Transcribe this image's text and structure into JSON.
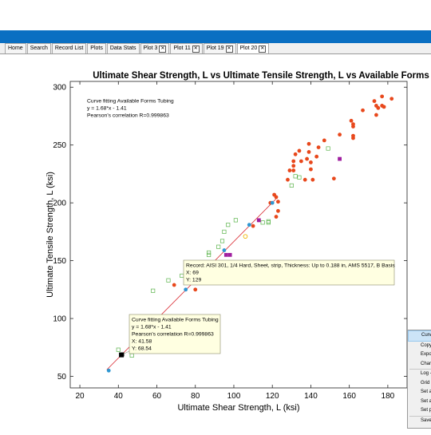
{
  "tabs": [
    {
      "label": "Home",
      "closable": false,
      "active": false
    },
    {
      "label": "Search",
      "closable": false,
      "active": false
    },
    {
      "label": "Record List",
      "closable": false,
      "active": false
    },
    {
      "label": "Plots",
      "closable": false,
      "active": false
    },
    {
      "label": "Data Stats",
      "closable": false,
      "active": false
    },
    {
      "label": "Plot 3",
      "closable": true,
      "active": false
    },
    {
      "label": "Plot 11",
      "closable": true,
      "active": false
    },
    {
      "label": "Plot 19",
      "closable": true,
      "active": false
    },
    {
      "label": "Plot 20",
      "closable": true,
      "active": true
    }
  ],
  "chart_data": {
    "type": "scatter",
    "title": "Ultimate Shear Strength, L vs Ultimate Tensile Strength, L vs Available Forms",
    "xlabel": "Ultimate Shear Strength, L (ksi)",
    "ylabel": "Ultimate Tensile Strength, L (ksi)",
    "xlim": [
      15,
      190
    ],
    "ylim": [
      40,
      305
    ],
    "xticks": [
      20,
      40,
      60,
      80,
      100,
      120,
      140,
      160,
      180
    ],
    "yticks": [
      50,
      100,
      150,
      200,
      250,
      300
    ],
    "grid": false,
    "fit": {
      "slope": 1.68,
      "intercept": -1.41,
      "x_range": [
        34,
        122
      ]
    },
    "series": [
      {
        "marker": "circle",
        "color": "#e8481c",
        "points": [
          [
            69,
            129
          ],
          [
            80,
            125
          ],
          [
            110,
            180
          ],
          [
            113,
            185
          ],
          [
            119,
            200
          ],
          [
            121,
            207
          ],
          [
            122,
            205
          ],
          [
            123,
            201
          ],
          [
            123,
            193
          ],
          [
            122,
            188
          ],
          [
            128,
            220
          ],
          [
            129,
            228
          ],
          [
            131,
            228
          ],
          [
            131,
            236
          ],
          [
            131,
            232
          ],
          [
            132,
            242
          ],
          [
            134,
            245
          ],
          [
            135,
            236
          ],
          [
            137,
            220
          ],
          [
            138,
            238
          ],
          [
            139,
            244
          ],
          [
            139,
            251
          ],
          [
            140,
            229
          ],
          [
            140,
            235
          ],
          [
            141,
            220
          ],
          [
            143,
            240
          ],
          [
            144,
            248
          ],
          [
            147,
            254
          ],
          [
            152,
            221
          ],
          [
            155,
            259
          ],
          [
            161,
            271
          ],
          [
            162,
            268
          ],
          [
            162,
            266
          ],
          [
            162,
            256
          ],
          [
            162,
            258
          ],
          [
            167,
            280
          ],
          [
            173,
            288
          ],
          [
            174,
            284
          ],
          [
            174,
            276
          ],
          [
            175,
            282
          ],
          [
            177,
            284
          ],
          [
            177,
            292
          ],
          [
            178,
            283
          ],
          [
            182,
            290
          ]
        ]
      },
      {
        "marker": "square-open",
        "color": "#5ab34a",
        "points": [
          [
            40,
            73
          ],
          [
            47,
            68
          ],
          [
            58,
            124
          ],
          [
            66,
            133
          ],
          [
            73,
            137
          ],
          [
            87,
            155
          ],
          [
            87,
            157
          ],
          [
            92,
            162
          ],
          [
            94,
            167
          ],
          [
            95,
            175
          ],
          [
            97,
            181
          ],
          [
            101,
            185
          ],
          [
            118,
            184
          ],
          [
            115,
            183
          ],
          [
            118,
            183
          ],
          [
            130,
            215
          ],
          [
            132,
            223
          ],
          [
            134,
            222
          ],
          [
            149,
            247
          ]
        ]
      },
      {
        "marker": "circle",
        "color": "#2e97d2",
        "points": [
          [
            35,
            55
          ],
          [
            75,
            125
          ],
          [
            95,
            159
          ],
          [
            108,
            181
          ],
          [
            120,
            200
          ]
        ]
      },
      {
        "marker": "circle-open",
        "color": "#f0b400",
        "points": [
          [
            106,
            171
          ]
        ]
      },
      {
        "marker": "square",
        "color": "#a01fa0",
        "points": [
          [
            96,
            155
          ],
          [
            98,
            155
          ],
          [
            113,
            185
          ],
          [
            155,
            238
          ]
        ]
      },
      {
        "marker": "square",
        "color": "#000000",
        "points": [
          [
            42,
            69
          ]
        ]
      }
    ],
    "annotations": {
      "fit_box": {
        "lines": [
          "Curve fitting Available Forms Tubing",
          "y = 1.68*x - 1.41",
          "Pearson's correlation R=0.999863"
        ]
      },
      "point_tooltip_1": {
        "lines": [
          "Curve fitting Available Forms Tubing",
          "y = 1.68*x - 1.41",
          "Pearson's correlation R=0.999863",
          "X: 41.58",
          "Y: 68.54"
        ],
        "x": 41.58,
        "y": 68.54
      },
      "point_tooltip_2": {
        "lines": [
          "Record: AISI 301, 1/4 Hard, Sheet, strip, Thickness: Up to 0.188 in, AMS 5517, B Basis",
          "X: 69",
          "Y: 129"
        ],
        "x": 69,
        "y": 129
      }
    }
  },
  "context_menu": {
    "items": [
      "Curv",
      "Copy",
      "Expo",
      "Char",
      "Log -",
      "Grid",
      "Set a",
      "Set a",
      "Set p",
      "Save"
    ],
    "highlighted_index": 0
  }
}
